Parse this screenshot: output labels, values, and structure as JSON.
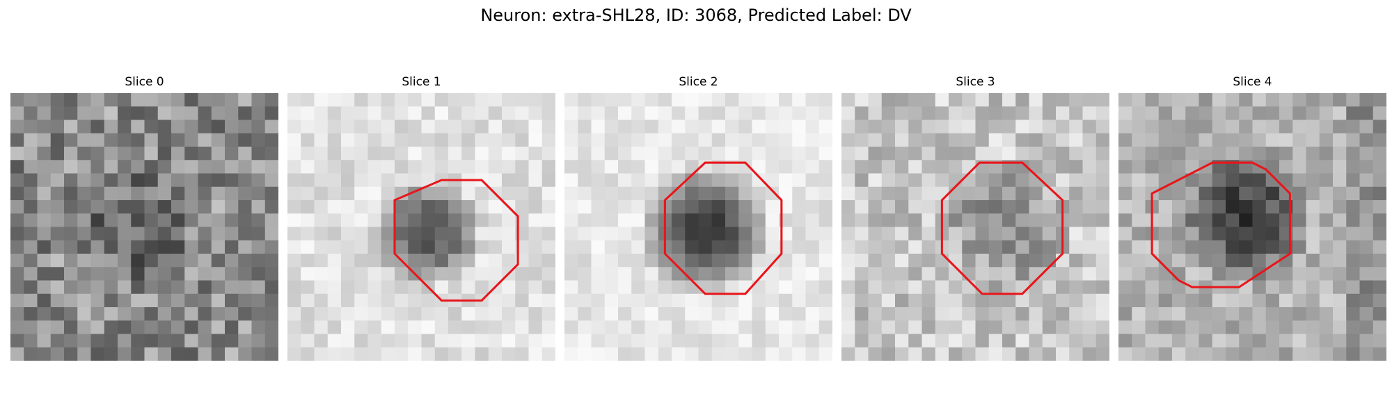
{
  "figure": {
    "title": "Neuron: extra-SHL28, ID: 3068, Predicted Label: DV",
    "roi_color": "#e8161b"
  },
  "slices": [
    {
      "label": "Slice 0",
      "roi": []
    },
    {
      "label": "Slice 1",
      "roi": [
        [
          11.5,
          6.5
        ],
        [
          14.5,
          6.5
        ],
        [
          17.2,
          9.2
        ],
        [
          17.2,
          12.8
        ],
        [
          14.5,
          15.5
        ],
        [
          11.5,
          15.5
        ],
        [
          8.0,
          12.0
        ],
        [
          8.0,
          8.0
        ]
      ]
    },
    {
      "label": "Slice 2",
      "roi": [
        [
          10.5,
          5.2
        ],
        [
          13.5,
          5.2
        ],
        [
          16.2,
          8.0
        ],
        [
          16.2,
          12.0
        ],
        [
          13.5,
          15.0
        ],
        [
          10.5,
          15.0
        ],
        [
          7.5,
          12.0
        ],
        [
          7.5,
          8.0
        ]
      ]
    },
    {
      "label": "Slice 3",
      "roi": [
        [
          10.3,
          5.2
        ],
        [
          13.5,
          5.2
        ],
        [
          16.5,
          8.0
        ],
        [
          16.5,
          12.0
        ],
        [
          13.5,
          15.0
        ],
        [
          10.5,
          15.0
        ],
        [
          7.5,
          12.0
        ],
        [
          7.5,
          8.0
        ]
      ]
    },
    {
      "label": "Slice 4",
      "roi": [
        [
          7.0,
          5.2
        ],
        [
          10.0,
          5.2
        ],
        [
          11.0,
          5.7
        ],
        [
          12.8,
          7.5
        ],
        [
          12.8,
          12.0
        ],
        [
          9.0,
          14.5
        ],
        [
          5.5,
          14.5
        ],
        [
          4.5,
          14.0
        ],
        [
          2.5,
          12.0
        ],
        [
          2.5,
          7.5
        ]
      ]
    }
  ]
}
